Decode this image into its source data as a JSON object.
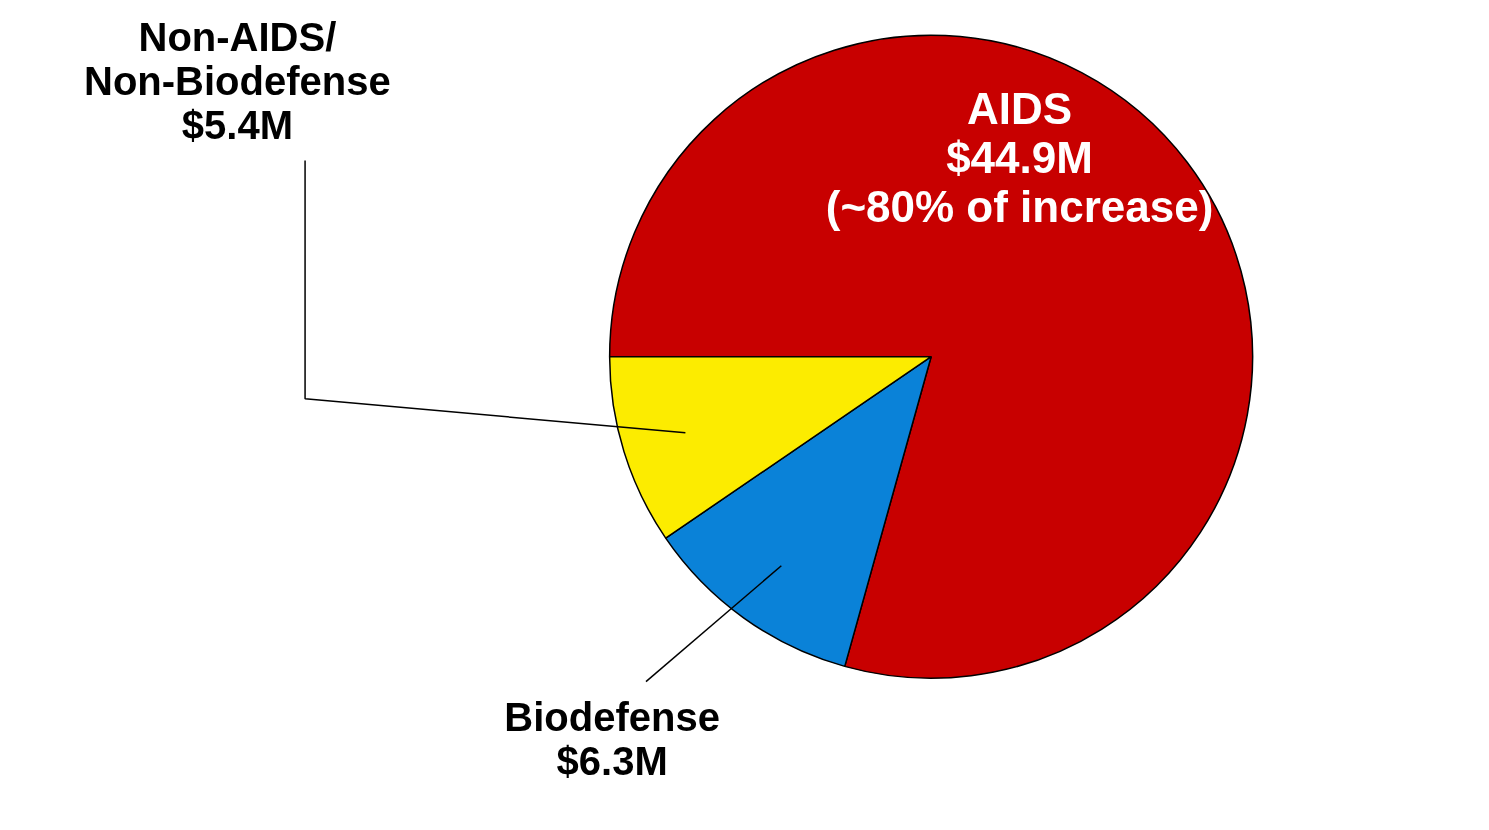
{
  "chart_data": {
    "type": "pie",
    "categories": [
      "AIDS",
      "Biodefense",
      "Non-AIDS/Non-Biodefense"
    ],
    "values": [
      44.9,
      6.3,
      5.4
    ],
    "value_labels": [
      "$44.9M",
      "$6.3M",
      "$5.4M"
    ],
    "colors": [
      "#c80000",
      "#0a82d8",
      "#fcec00"
    ],
    "annotations": [
      "(~80% of increase)"
    ]
  }
}
